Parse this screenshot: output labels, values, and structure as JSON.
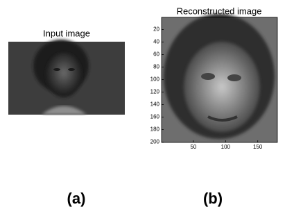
{
  "panels": [
    {
      "title": "Input image",
      "label": "(a)"
    },
    {
      "title": "Reconstructed image",
      "label": "(b)",
      "xlim": [
        0.5,
        180.5
      ],
      "ylim": [
        200.5,
        0.5
      ],
      "xticks": [
        50,
        100,
        150
      ],
      "yticks": [
        20,
        40,
        60,
        80,
        100,
        120,
        140,
        160,
        180,
        200
      ]
    }
  ]
}
